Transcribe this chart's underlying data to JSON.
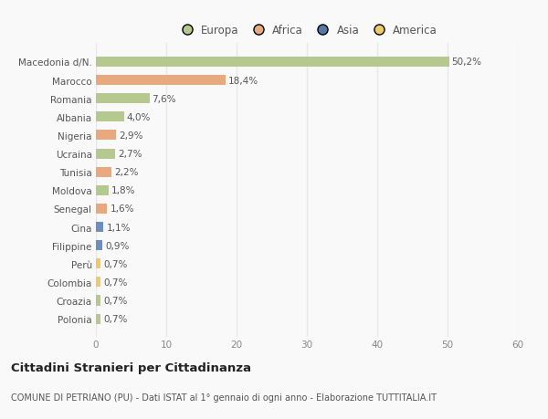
{
  "countries": [
    "Macedonia d/N.",
    "Marocco",
    "Romania",
    "Albania",
    "Nigeria",
    "Ucraina",
    "Tunisia",
    "Moldova",
    "Senegal",
    "Cina",
    "Filippine",
    "Perù",
    "Colombia",
    "Croazia",
    "Polonia"
  ],
  "values": [
    50.2,
    18.4,
    7.6,
    4.0,
    2.9,
    2.7,
    2.2,
    1.8,
    1.6,
    1.1,
    0.9,
    0.7,
    0.7,
    0.7,
    0.7
  ],
  "labels": [
    "50,2%",
    "18,4%",
    "7,6%",
    "4,0%",
    "2,9%",
    "2,7%",
    "2,2%",
    "1,8%",
    "1,6%",
    "1,1%",
    "0,9%",
    "0,7%",
    "0,7%",
    "0,7%",
    "0,7%"
  ],
  "colors": [
    "#b5c98e",
    "#e8a97e",
    "#b5c98e",
    "#b5c98e",
    "#e8a97e",
    "#b5c98e",
    "#e8a97e",
    "#b5c98e",
    "#e8a97e",
    "#6b8fbf",
    "#6b8fbf",
    "#f0c96a",
    "#f0c96a",
    "#b5c98e",
    "#b5c98e"
  ],
  "legend_labels": [
    "Europa",
    "Africa",
    "Asia",
    "America"
  ],
  "legend_colors": [
    "#b5c98e",
    "#e8a97e",
    "#5578a8",
    "#f0c96a"
  ],
  "xlim": [
    0,
    60
  ],
  "xticks": [
    0,
    10,
    20,
    30,
    40,
    50,
    60
  ],
  "title": "Cittadini Stranieri per Cittadinanza",
  "subtitle": "COMUNE DI PETRIANO (PU) - Dati ISTAT al 1° gennaio di ogni anno - Elaborazione TUTTITALIA.IT",
  "background_color": "#f9f9f9",
  "grid_color": "#e8e8e8",
  "bar_height": 0.55,
  "label_fontsize": 7.5,
  "tick_fontsize": 7.5,
  "legend_fontsize": 8.5,
  "title_fontsize": 9.5,
  "subtitle_fontsize": 7.0
}
